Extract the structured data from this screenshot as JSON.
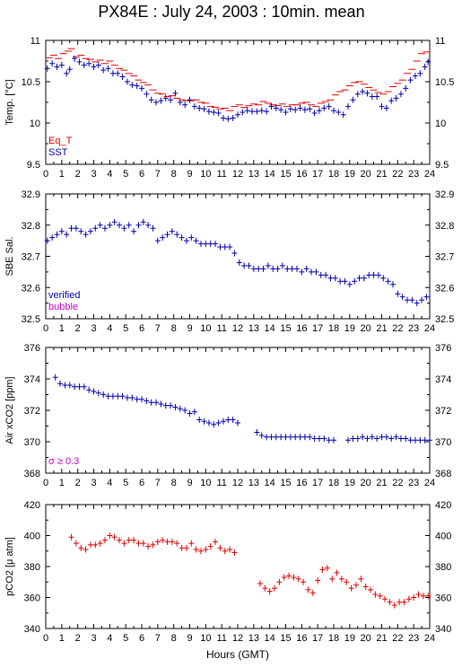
{
  "title": "PX84E : July 24, 2003 : 10min. mean",
  "xlabel": "Hours (GMT)",
  "colors": {
    "red": "#dd0000",
    "blue": "#0000aa",
    "magenta": "#cc00cc",
    "axis": "#000000"
  },
  "chart_data": [
    {
      "type": "scatter",
      "ylabel": "Temp. [°C]",
      "xlim": [
        0,
        24
      ],
      "ylim": [
        9.5,
        11
      ],
      "xticks": [
        "0",
        "1",
        "2",
        "3",
        "4",
        "5",
        "6",
        "7",
        "8",
        "9",
        "10",
        "11",
        "12",
        "13",
        "14",
        "15",
        "16",
        "17",
        "18",
        "19",
        "20",
        "21",
        "22",
        "23",
        "24"
      ],
      "yticks": [
        "9.5",
        "10",
        "10.5",
        "11"
      ],
      "annotations": [],
      "series": [
        {
          "name": "Eq_T",
          "color": "#dd0000",
          "marker": "dash",
          "x": [
            0.2,
            0.5,
            0.8,
            1.1,
            1.4,
            1.6,
            1.9,
            2.2,
            2.5,
            2.8,
            3.1,
            3.4,
            3.7,
            4.0,
            4.3,
            4.6,
            4.9,
            5.2,
            5.5,
            5.8,
            6.1,
            6.4,
            6.7,
            7.0,
            7.3,
            7.6,
            7.9,
            8.2,
            8.5,
            8.8,
            9.1,
            9.4,
            9.7,
            10.0,
            10.3,
            10.6,
            10.9,
            11.2,
            11.5,
            11.8,
            12.1,
            12.4,
            12.7,
            13.0,
            13.3,
            13.6,
            13.9,
            14.2,
            14.5,
            14.8,
            15.1,
            15.4,
            15.7,
            16.0,
            16.3,
            16.6,
            16.9,
            17.2,
            17.5,
            17.8,
            18.1,
            18.4,
            18.7,
            19.0,
            19.3,
            19.6,
            19.9,
            20.2,
            20.5,
            20.8,
            21.1,
            21.4,
            21.7,
            22.0,
            22.3,
            22.6,
            22.9,
            23.2,
            23.5,
            23.8
          ],
          "y": [
            10.79,
            10.82,
            10.78,
            10.84,
            10.87,
            10.9,
            10.8,
            10.82,
            10.78,
            10.77,
            10.74,
            10.76,
            10.72,
            10.75,
            10.7,
            10.66,
            10.64,
            10.6,
            10.57,
            10.52,
            10.49,
            10.46,
            10.4,
            10.36,
            10.35,
            10.32,
            10.33,
            10.3,
            10.28,
            10.27,
            10.27,
            10.28,
            10.25,
            10.24,
            10.2,
            10.19,
            10.17,
            10.18,
            10.15,
            10.2,
            10.22,
            10.19,
            10.21,
            10.23,
            10.22,
            10.26,
            10.24,
            10.22,
            10.21,
            10.23,
            10.2,
            10.22,
            10.22,
            10.24,
            10.25,
            10.22,
            10.2,
            10.24,
            10.26,
            10.28,
            10.34,
            10.38,
            10.4,
            10.45,
            10.49,
            10.5,
            10.47,
            10.43,
            10.4,
            10.37,
            10.35,
            10.38,
            10.44,
            10.48,
            10.52,
            10.6,
            10.65,
            10.75,
            10.84,
            10.86
          ]
        },
        {
          "name": "SST",
          "color": "#0000aa",
          "marker": "cross",
          "x": [
            0.1,
            0.4,
            0.7,
            1.0,
            1.3,
            1.5,
            1.8,
            2.1,
            2.4,
            2.7,
            3.0,
            3.3,
            3.6,
            3.9,
            4.2,
            4.5,
            4.8,
            5.1,
            5.4,
            5.7,
            6.0,
            6.3,
            6.6,
            6.9,
            7.2,
            7.5,
            7.8,
            8.1,
            8.4,
            8.7,
            9.0,
            9.3,
            9.6,
            9.9,
            10.2,
            10.5,
            10.8,
            11.1,
            11.4,
            11.7,
            12.0,
            12.3,
            12.6,
            12.9,
            13.2,
            13.5,
            13.8,
            14.1,
            14.4,
            14.7,
            15.0,
            15.3,
            15.6,
            15.9,
            16.2,
            16.5,
            16.8,
            17.1,
            17.4,
            17.7,
            18.0,
            18.3,
            18.6,
            18.9,
            19.2,
            19.5,
            19.8,
            20.1,
            20.4,
            20.7,
            21.0,
            21.3,
            21.6,
            21.9,
            22.2,
            22.5,
            22.8,
            23.1,
            23.4,
            23.7,
            23.9
          ],
          "y": [
            10.66,
            10.72,
            10.68,
            10.7,
            10.6,
            10.65,
            10.78,
            10.74,
            10.7,
            10.72,
            10.68,
            10.7,
            10.64,
            10.66,
            10.6,
            10.6,
            10.56,
            10.5,
            10.46,
            10.45,
            10.42,
            10.35,
            10.28,
            10.25,
            10.27,
            10.3,
            10.28,
            10.36,
            10.25,
            10.22,
            10.28,
            10.2,
            10.18,
            10.17,
            10.14,
            10.13,
            10.12,
            10.06,
            10.05,
            10.06,
            10.1,
            10.13,
            10.15,
            10.14,
            10.14,
            10.15,
            10.14,
            10.2,
            10.18,
            10.16,
            10.13,
            10.17,
            10.16,
            10.18,
            10.16,
            10.17,
            10.12,
            10.15,
            10.18,
            10.2,
            10.15,
            10.13,
            10.1,
            10.2,
            10.28,
            10.35,
            10.38,
            10.36,
            10.32,
            10.32,
            10.2,
            10.18,
            10.27,
            10.3,
            10.35,
            10.42,
            10.52,
            10.57,
            10.6,
            10.68,
            10.74
          ]
        }
      ]
    },
    {
      "type": "scatter",
      "ylabel": "SBE Sal.",
      "xlim": [
        0,
        24
      ],
      "ylim": [
        32.5,
        32.9
      ],
      "xticks": [
        "0",
        "1",
        "2",
        "3",
        "4",
        "5",
        "6",
        "7",
        "8",
        "9",
        "10",
        "11",
        "12",
        "13",
        "14",
        "15",
        "16",
        "17",
        "18",
        "19",
        "20",
        "21",
        "22",
        "23",
        "24"
      ],
      "yticks": [
        "32.5",
        "32.6",
        "32.7",
        "32.8",
        "32.9"
      ],
      "annotations": [],
      "series": [
        {
          "name": "verified",
          "color": "#0000aa",
          "marker": "cross",
          "x": [
            0.1,
            0.4,
            0.7,
            1.0,
            1.3,
            1.6,
            1.9,
            2.2,
            2.5,
            2.8,
            3.1,
            3.4,
            3.7,
            4.0,
            4.3,
            4.6,
            4.9,
            5.2,
            5.5,
            5.8,
            6.1,
            6.4,
            6.7,
            7.0,
            7.3,
            7.6,
            7.9,
            8.2,
            8.5,
            8.8,
            9.1,
            9.4,
            9.7,
            10.0,
            10.3,
            10.6,
            10.9,
            11.2,
            11.5,
            11.8,
            12.1,
            12.4,
            12.7,
            13.0,
            13.3,
            13.6,
            13.9,
            14.2,
            14.5,
            14.8,
            15.1,
            15.4,
            15.7,
            16.0,
            16.3,
            16.6,
            16.9,
            17.2,
            17.5,
            17.8,
            18.1,
            18.4,
            18.7,
            19.0,
            19.3,
            19.6,
            19.9,
            20.2,
            20.5,
            20.8,
            21.1,
            21.4,
            21.7,
            22.0,
            22.3,
            22.6,
            22.9,
            23.2,
            23.5,
            23.8
          ],
          "y": [
            32.75,
            32.76,
            32.77,
            32.78,
            32.77,
            32.79,
            32.79,
            32.78,
            32.77,
            32.78,
            32.79,
            32.8,
            32.79,
            32.8,
            32.81,
            32.8,
            32.79,
            32.8,
            32.78,
            32.8,
            32.81,
            32.8,
            32.79,
            32.75,
            32.76,
            32.77,
            32.78,
            32.77,
            32.76,
            32.75,
            32.76,
            32.75,
            32.74,
            32.74,
            32.74,
            32.74,
            32.73,
            32.73,
            32.73,
            32.71,
            32.68,
            32.67,
            32.67,
            32.66,
            32.66,
            32.66,
            32.67,
            32.66,
            32.66,
            32.67,
            32.66,
            32.66,
            32.66,
            32.65,
            32.66,
            32.65,
            32.65,
            32.64,
            32.64,
            32.63,
            32.63,
            32.62,
            32.62,
            32.61,
            32.62,
            32.63,
            32.63,
            32.64,
            32.64,
            32.64,
            32.63,
            32.62,
            32.61,
            32.58,
            32.57,
            32.56,
            32.56,
            32.55,
            32.56,
            32.57
          ]
        },
        {
          "name": "bubble",
          "color": "#cc00cc",
          "marker": "cross",
          "x": [],
          "y": []
        }
      ]
    },
    {
      "type": "scatter",
      "ylabel": "Air xCO2 [ppm]",
      "xlim": [
        0,
        24
      ],
      "ylim": [
        368,
        376
      ],
      "xticks": [
        "0",
        "1",
        "2",
        "3",
        "4",
        "5",
        "6",
        "7",
        "8",
        "9",
        "10",
        "11",
        "12",
        "13",
        "14",
        "15",
        "16",
        "17",
        "18",
        "19",
        "20",
        "21",
        "22",
        "23",
        "24"
      ],
      "yticks": [
        "368",
        "370",
        "372",
        "374",
        "376"
      ],
      "annotations": [
        "σ ≥ 0.3"
      ],
      "series": [
        {
          "name": "",
          "color": "#0000aa",
          "marker": "cross",
          "x": [
            0.6,
            0.9,
            1.2,
            1.5,
            1.8,
            2.1,
            2.4,
            2.7,
            3.0,
            3.3,
            3.6,
            3.9,
            4.2,
            4.5,
            4.8,
            5.1,
            5.4,
            5.7,
            6.0,
            6.3,
            6.6,
            6.9,
            7.2,
            7.5,
            7.8,
            8.1,
            8.4,
            8.7,
            9.0,
            9.3,
            9.6,
            9.9,
            10.2,
            10.5,
            10.8,
            11.1,
            11.4,
            11.7,
            12.0,
            13.2,
            13.5,
            13.8,
            14.1,
            14.4,
            14.7,
            15.0,
            15.3,
            15.6,
            15.9,
            16.2,
            16.5,
            16.8,
            17.1,
            17.4,
            17.7,
            18.0,
            18.9,
            19.2,
            19.5,
            19.8,
            20.1,
            20.4,
            20.7,
            21.0,
            21.3,
            21.6,
            21.9,
            22.2,
            22.5,
            22.8,
            23.1,
            23.4,
            23.7,
            24.0
          ],
          "y": [
            374.1,
            373.7,
            373.6,
            373.6,
            373.5,
            373.5,
            373.5,
            373.3,
            373.2,
            373.1,
            373.0,
            372.9,
            372.9,
            372.9,
            372.9,
            372.8,
            372.8,
            372.7,
            372.7,
            372.6,
            372.5,
            372.5,
            372.4,
            372.3,
            372.3,
            372.2,
            372.1,
            372.0,
            371.8,
            371.9,
            371.4,
            371.3,
            371.2,
            371.1,
            371.2,
            371.3,
            371.4,
            371.4,
            371.2,
            370.6,
            370.4,
            370.3,
            370.3,
            370.3,
            370.3,
            370.3,
            370.3,
            370.3,
            370.3,
            370.3,
            370.3,
            370.2,
            370.2,
            370.2,
            370.1,
            370.1,
            370.1,
            370.2,
            370.2,
            370.3,
            370.2,
            370.3,
            370.2,
            370.3,
            370.3,
            370.2,
            370.3,
            370.2,
            370.2,
            370.1,
            370.1,
            370.1,
            370.1,
            370.1
          ]
        }
      ]
    },
    {
      "type": "scatter",
      "ylabel": "pCO2 [μ atm]",
      "xlim": [
        0,
        24
      ],
      "ylim": [
        340,
        420
      ],
      "xticks": [
        "0",
        "1",
        "2",
        "3",
        "4",
        "5",
        "6",
        "7",
        "8",
        "9",
        "10",
        "11",
        "12",
        "13",
        "14",
        "15",
        "16",
        "17",
        "18",
        "19",
        "20",
        "21",
        "22",
        "23",
        "24"
      ],
      "yticks": [
        "340",
        "360",
        "380",
        "400",
        "420"
      ],
      "annotations": [],
      "series": [
        {
          "name": "",
          "color": "#dd0000",
          "marker": "cross",
          "x": [
            1.6,
            1.9,
            2.2,
            2.5,
            2.8,
            3.1,
            3.4,
            3.7,
            4.0,
            4.3,
            4.6,
            4.9,
            5.2,
            5.5,
            5.8,
            6.1,
            6.4,
            6.7,
            7.0,
            7.3,
            7.6,
            7.9,
            8.2,
            8.5,
            8.8,
            9.1,
            9.4,
            9.7,
            10.0,
            10.3,
            10.6,
            10.9,
            11.2,
            11.5,
            11.8,
            13.4,
            13.7,
            14.0,
            14.3,
            14.6,
            14.9,
            15.2,
            15.5,
            15.8,
            16.1,
            16.4,
            16.7,
            17.0,
            17.3,
            17.6,
            17.9,
            18.2,
            18.5,
            18.8,
            19.1,
            19.4,
            19.7,
            20.0,
            20.3,
            20.6,
            20.9,
            21.2,
            21.5,
            21.8,
            22.1,
            22.4,
            22.7,
            23.0,
            23.3,
            23.6,
            23.9
          ],
          "y": [
            399,
            395,
            392,
            391,
            394,
            394,
            395,
            397,
            400,
            399,
            397,
            395,
            397,
            397,
            395,
            395,
            393,
            394,
            396,
            397,
            396,
            396,
            395,
            392,
            392,
            395,
            391,
            390,
            391,
            393,
            396,
            392,
            390,
            391,
            389,
            369,
            366,
            364,
            366,
            370,
            373,
            374,
            373,
            372,
            370,
            365,
            363,
            371,
            378,
            379,
            372,
            376,
            372,
            370,
            366,
            368,
            372,
            367,
            365,
            362,
            361,
            359,
            357,
            355,
            357,
            357,
            359,
            360,
            362,
            361,
            361
          ]
        }
      ]
    }
  ]
}
